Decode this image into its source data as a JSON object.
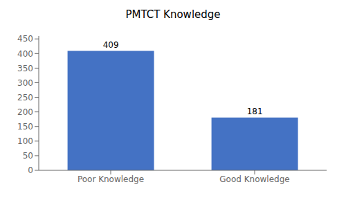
{
  "chart_data": {
    "type": "bar",
    "title": "PMTCT Knowledge",
    "categories": [
      "Poor Knowledge",
      "Good Knowledge"
    ],
    "values": [
      409,
      181
    ],
    "color": "#4472C4",
    "ylim": [
      0,
      460
    ],
    "yticks": [
      0,
      50,
      100,
      150,
      200,
      250,
      300,
      350,
      400,
      450
    ],
    "grid": false,
    "data_labels": true
  }
}
